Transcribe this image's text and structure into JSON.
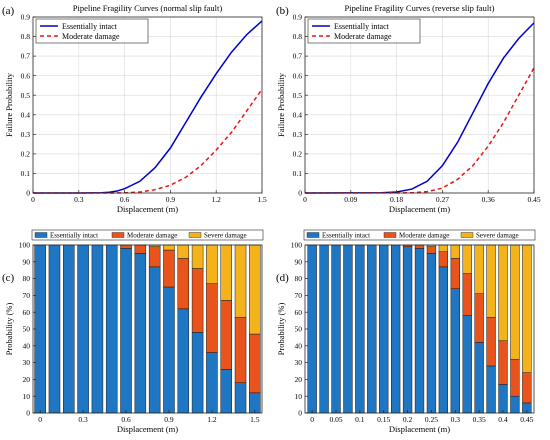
{
  "chart_data": [
    {
      "panel_label": "(a)",
      "type": "line",
      "title": "Pipeline Fragility Curves (normal slip fault)",
      "xlabel": "Displacement (m)",
      "ylabel": "Failure Probability",
      "xlim": [
        0,
        1.5
      ],
      "ylim": [
        0,
        0.9
      ],
      "xticks": [
        "0",
        "0.3",
        "0.6",
        "0.9",
        "1.2",
        "1.5"
      ],
      "xtick_values": [
        0,
        0.3,
        0.6,
        0.9,
        1.2,
        1.5
      ],
      "yticks": [
        "0",
        "0.1",
        "0.2",
        "0.3",
        "0.4",
        "0.5",
        "0.6",
        "0.7",
        "0.8",
        "0.9"
      ],
      "ytick_values": [
        0,
        0.1,
        0.2,
        0.3,
        0.4,
        0.5,
        0.6,
        0.7,
        0.8,
        0.9
      ],
      "grid": true,
      "legend_position": "top-left",
      "series": [
        {
          "name": "Essentially intact",
          "color": "#0000cc",
          "dash": "solid",
          "x": [
            0,
            0.3,
            0.45,
            0.5,
            0.55,
            0.6,
            0.7,
            0.8,
            0.9,
            1.0,
            1.1,
            1.2,
            1.3,
            1.4,
            1.5
          ],
          "y": [
            0,
            0,
            0.001,
            0.004,
            0.01,
            0.022,
            0.06,
            0.13,
            0.23,
            0.36,
            0.49,
            0.61,
            0.72,
            0.81,
            0.88
          ]
        },
        {
          "name": "Moderate damage",
          "color": "#ee1111",
          "dash": "dashed",
          "x": [
            0,
            0.5,
            0.6,
            0.7,
            0.8,
            0.9,
            1.0,
            1.1,
            1.2,
            1.3,
            1.4,
            1.5
          ],
          "y": [
            0,
            0,
            0.001,
            0.005,
            0.017,
            0.04,
            0.08,
            0.14,
            0.22,
            0.31,
            0.42,
            0.53
          ]
        }
      ]
    },
    {
      "panel_label": "(b)",
      "type": "line",
      "title": "Pipeline Fragility Curves (reverse slip fault)",
      "xlabel": "Displacement (m)",
      "ylabel": "Failure Probability",
      "xlim": [
        0,
        0.45
      ],
      "ylim": [
        0,
        0.9
      ],
      "xticks": [
        "0",
        "0.09",
        "0.18",
        "0.27",
        "0.36",
        "0.45"
      ],
      "xtick_values": [
        0,
        0.09,
        0.18,
        0.27,
        0.36,
        0.45
      ],
      "yticks": [
        "0",
        "0.1",
        "0.2",
        "0.3",
        "0.4",
        "0.5",
        "0.6",
        "0.7",
        "0.8",
        "0.9"
      ],
      "ytick_values": [
        0,
        0.1,
        0.2,
        0.3,
        0.4,
        0.5,
        0.6,
        0.7,
        0.8,
        0.9
      ],
      "grid": true,
      "legend_position": "top-left",
      "series": [
        {
          "name": "Essentially intact",
          "color": "#0000cc",
          "dash": "solid",
          "x": [
            0,
            0.15,
            0.18,
            0.21,
            0.24,
            0.27,
            0.3,
            0.33,
            0.36,
            0.39,
            0.42,
            0.45
          ],
          "y": [
            0,
            0.001,
            0.005,
            0.02,
            0.06,
            0.14,
            0.26,
            0.41,
            0.56,
            0.69,
            0.79,
            0.87
          ]
        },
        {
          "name": "Moderate damage",
          "color": "#ee1111",
          "dash": "dashed",
          "x": [
            0,
            0.21,
            0.24,
            0.27,
            0.3,
            0.33,
            0.36,
            0.39,
            0.42,
            0.45
          ],
          "y": [
            0,
            0.001,
            0.007,
            0.025,
            0.07,
            0.14,
            0.24,
            0.36,
            0.5,
            0.64
          ]
        }
      ]
    },
    {
      "panel_label": "(c)",
      "type": "bar",
      "stacked": true,
      "xlabel": "Displacement (m)",
      "ylabel": "Probability (%)",
      "ylim": [
        0,
        100
      ],
      "xlim": [
        -0.05,
        1.55
      ],
      "xticks": [
        "0",
        "0.3",
        "0.6",
        "0.9",
        "1.2",
        "1.5"
      ],
      "xtick_values": [
        0,
        0.3,
        0.6,
        0.9,
        1.2,
        1.5
      ],
      "yticks": [
        "0",
        "10",
        "20",
        "30",
        "40",
        "50",
        "60",
        "70",
        "80",
        "90",
        "100"
      ],
      "ytick_values": [
        0,
        10,
        20,
        30,
        40,
        50,
        60,
        70,
        80,
        90,
        100
      ],
      "legend_position": "top",
      "bar_width": 0.077,
      "x": [
        0,
        0.1,
        0.2,
        0.3,
        0.4,
        0.5,
        0.6,
        0.7,
        0.8,
        0.9,
        1.0,
        1.1,
        1.2,
        1.3,
        1.4,
        1.5
      ],
      "series": [
        {
          "name": "Essentially intact",
          "color": "#1f77c4",
          "values": [
            100,
            100,
            100,
            100,
            100,
            100,
            98,
            95,
            87,
            75,
            62,
            48,
            36,
            26,
            18,
            12
          ]
        },
        {
          "name": "Moderate damage",
          "color": "#e8541b",
          "values": [
            0,
            0,
            0,
            0,
            0,
            0,
            2,
            5,
            12,
            22,
            30,
            38,
            41,
            41,
            39,
            35
          ]
        },
        {
          "name": "Severe damage",
          "color": "#f5b31b",
          "values": [
            0,
            0,
            0,
            0,
            0,
            0,
            0,
            0,
            1,
            3,
            8,
            14,
            23,
            33,
            43,
            53
          ]
        }
      ]
    },
    {
      "panel_label": "(d)",
      "type": "bar",
      "stacked": true,
      "xlabel": "Displacement (m)",
      "ylabel": "Probability (%)",
      "ylim": [
        0,
        100
      ],
      "xlim": [
        -0.015,
        0.465
      ],
      "xticks": [
        "0",
        "0.05",
        "0.1",
        "0.15",
        "0.2",
        "0.25",
        "0.3",
        "0.35",
        "0.4",
        "0.45"
      ],
      "xtick_values": [
        0,
        0.05,
        0.1,
        0.15,
        0.2,
        0.25,
        0.3,
        0.35,
        0.4,
        0.45
      ],
      "yticks": [
        "0",
        "10",
        "20",
        "30",
        "40",
        "50",
        "60",
        "70",
        "80",
        "90",
        "100"
      ],
      "ytick_values": [
        0,
        10,
        20,
        30,
        40,
        50,
        60,
        70,
        80,
        90,
        100
      ],
      "legend_position": "top",
      "bar_width": 0.0185,
      "x": [
        0,
        0.025,
        0.05,
        0.075,
        0.1,
        0.125,
        0.15,
        0.175,
        0.2,
        0.225,
        0.25,
        0.275,
        0.3,
        0.325,
        0.35,
        0.375,
        0.4,
        0.425,
        0.45
      ],
      "series": [
        {
          "name": "Essentially intact",
          "color": "#1f77c4",
          "values": [
            100,
            100,
            100,
            100,
            100,
            100,
            100,
            100,
            99,
            98,
            95,
            87,
            74,
            58,
            42,
            28,
            17,
            10,
            6
          ]
        },
        {
          "name": "Moderate damage",
          "color": "#e8541b",
          "values": [
            0,
            0,
            0,
            0,
            0,
            0,
            0,
            0,
            1,
            2,
            4,
            9,
            18,
            25,
            29,
            29,
            26,
            22,
            18
          ]
        },
        {
          "name": "Severe damage",
          "color": "#f5b31b",
          "values": [
            0,
            0,
            0,
            0,
            0,
            0,
            0,
            0,
            0,
            0,
            1,
            4,
            8,
            17,
            29,
            43,
            57,
            68,
            76
          ]
        }
      ]
    }
  ]
}
